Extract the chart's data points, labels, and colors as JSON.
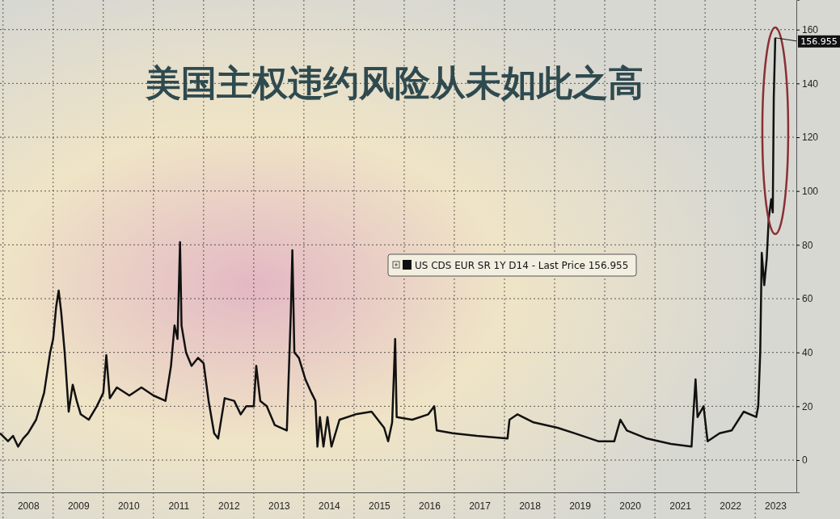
{
  "chart_data": {
    "type": "line",
    "title": "美国主权违约风险从未如此之高",
    "xlim": [
      2007.94,
      2023.82
    ],
    "xticks": [
      {
        "value": 2008,
        "label": null
      },
      {
        "value": 2008.5,
        "label": "2008"
      },
      {
        "value": 2009,
        "label": null
      },
      {
        "value": 2009.5,
        "label": "2009"
      },
      {
        "value": 2010,
        "label": null
      },
      {
        "value": 2010.5,
        "label": "2010"
      },
      {
        "value": 2011,
        "label": null
      },
      {
        "value": 2011.5,
        "label": "2011"
      },
      {
        "value": 2012,
        "label": null
      },
      {
        "value": 2012.5,
        "label": "2012"
      },
      {
        "value": 2013,
        "label": null
      },
      {
        "value": 2013.5,
        "label": "2013"
      },
      {
        "value": 2014,
        "label": null
      },
      {
        "value": 2014.5,
        "label": "2014"
      },
      {
        "value": 2015,
        "label": null
      },
      {
        "value": 2015.5,
        "label": "2015"
      },
      {
        "value": 2016,
        "label": null
      },
      {
        "value": 2016.5,
        "label": "2016"
      },
      {
        "value": 2017,
        "label": null
      },
      {
        "value": 2017.5,
        "label": "2017"
      },
      {
        "value": 2018,
        "label": null
      },
      {
        "value": 2018.5,
        "label": "2018"
      },
      {
        "value": 2019,
        "label": null
      },
      {
        "value": 2019.5,
        "label": "2019"
      },
      {
        "value": 2020,
        "label": null
      },
      {
        "value": 2020.5,
        "label": "2020"
      },
      {
        "value": 2021,
        "label": null
      },
      {
        "value": 2021.5,
        "label": "2021"
      },
      {
        "value": 2022,
        "label": null
      },
      {
        "value": 2022.5,
        "label": "2022"
      },
      {
        "value": 2023,
        "label": null
      },
      {
        "value": 2023.4,
        "label": "2023"
      }
    ],
    "ylim": [
      -12,
      171
    ],
    "yticks": [
      0,
      20,
      40,
      60,
      80,
      100,
      120,
      140,
      160
    ],
    "grid": true,
    "legend": "center",
    "line_style": "solid",
    "annotations": [
      {
        "text": "156.955",
        "x": 2023.4,
        "y": 156.955
      }
    ],
    "series": [
      {
        "name": "US CDS EUR SR 1Y D14 - Last Price 156.955",
        "color": "#111111",
        "x": [
          2007.94,
          2008.1,
          2008.2,
          2008.3,
          2008.4,
          2008.5,
          2008.66,
          2008.82,
          2008.94,
          2009.0,
          2009.06,
          2009.11,
          2009.16,
          2009.23,
          2009.31,
          2009.39,
          2009.47,
          2009.55,
          2009.71,
          2009.87,
          2010.0,
          2010.06,
          2010.13,
          2010.27,
          2010.52,
          2010.76,
          2011.0,
          2011.24,
          2011.35,
          2011.42,
          2011.48,
          2011.53,
          2011.56,
          2011.65,
          2011.76,
          2011.89,
          2012.0,
          2012.1,
          2012.21,
          2012.29,
          2012.42,
          2012.61,
          2012.74,
          2012.85,
          2013.0,
          2013.05,
          2013.13,
          2013.26,
          2013.42,
          2013.66,
          2013.74,
          2013.77,
          2013.81,
          2013.9,
          2014.03,
          2014.15,
          2014.23,
          2014.27,
          2014.32,
          2014.39,
          2014.47,
          2014.55,
          2014.71,
          2015.03,
          2015.35,
          2015.6,
          2015.68,
          2015.76,
          2015.82,
          2015.85,
          2016.16,
          2016.48,
          2016.6,
          2016.65,
          2016.97,
          2017.45,
          2018.06,
          2018.1,
          2018.26,
          2018.58,
          2019.06,
          2019.39,
          2019.87,
          2020.19,
          2020.31,
          2020.44,
          2020.84,
          2021.32,
          2021.73,
          2021.76,
          2021.81,
          2021.85,
          2021.97,
          2022.05,
          2022.29,
          2022.53,
          2022.77,
          2023.02,
          2023.06,
          2023.1,
          2023.13,
          2023.18,
          2023.23,
          2023.27,
          2023.32,
          2023.35,
          2023.37,
          2023.4
        ],
        "values": [
          10,
          7,
          9,
          5,
          8,
          10,
          15,
          25,
          40,
          45,
          57,
          63,
          55,
          40,
          18,
          28,
          22,
          17,
          15,
          20,
          25,
          39,
          23,
          27,
          24,
          27,
          24,
          22,
          35,
          50,
          45,
          81,
          50,
          40,
          35,
          38,
          36,
          22,
          10,
          8,
          23,
          22,
          17,
          20,
          20,
          35,
          22,
          20,
          13,
          11,
          55,
          78,
          40,
          38,
          30,
          25,
          22,
          5,
          16,
          5,
          16,
          5,
          15,
          17,
          18,
          12,
          7,
          14,
          45,
          16,
          15,
          17,
          20,
          11,
          10,
          9,
          8,
          15,
          17,
          14,
          12,
          10,
          7,
          7,
          15,
          11,
          8,
          6,
          5,
          15,
          30,
          16,
          20,
          7,
          10,
          11,
          18,
          16,
          20,
          40,
          77,
          65,
          75,
          90,
          97,
          92,
          135,
          156.955
        ]
      }
    ]
  }
}
